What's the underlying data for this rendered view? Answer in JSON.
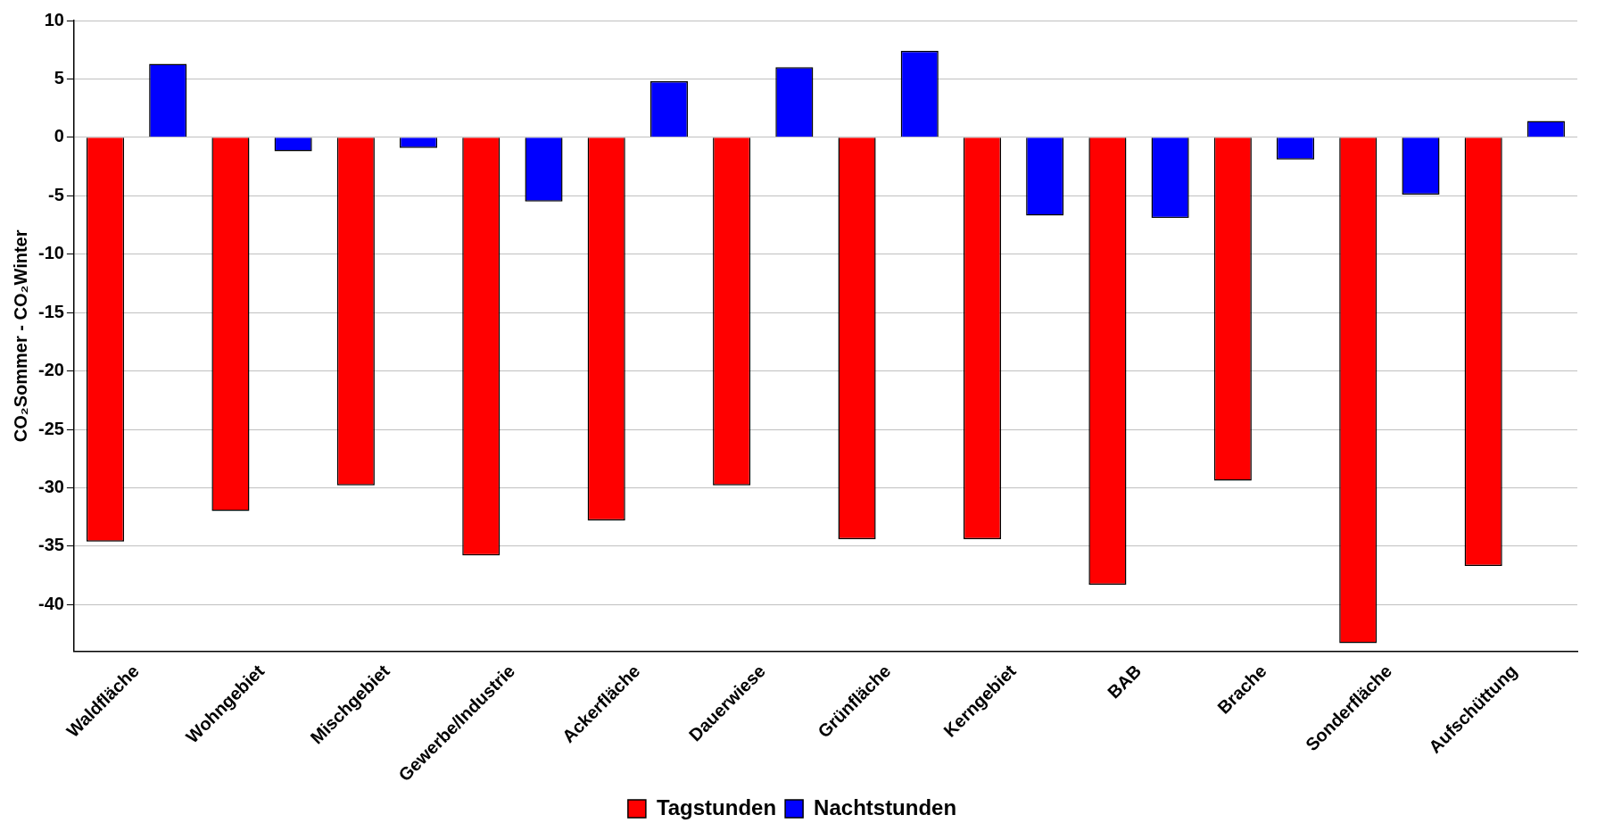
{
  "chart_data": {
    "type": "bar",
    "ylabel": "CO₂Sommer - CO₂Winter",
    "categories": [
      "Waldfläche",
      "Wohngebiet",
      "Mischgebiet",
      "Gewerbe/Industrie",
      "Ackerfläche",
      "Dauerwiese",
      "Grünfläche",
      "Kerngebiet",
      "BAB",
      "Brache",
      "Sonderfläche",
      "Aufschüttung"
    ],
    "series": [
      {
        "name": "Tagstunden",
        "color": "#ff0000",
        "values": [
          -34.6,
          -32.0,
          -29.8,
          -35.8,
          -32.8,
          -29.8,
          -34.4,
          -34.4,
          -38.3,
          -29.4,
          -43.3,
          -36.7
        ]
      },
      {
        "name": "Nachtstunden",
        "color": "#0000ff",
        "values": [
          6.3,
          -1.2,
          -0.9,
          -5.5,
          4.8,
          6.0,
          7.4,
          -6.7,
          -6.9,
          -1.9,
          -4.9,
          1.4
        ]
      }
    ],
    "ylim": [
      -44,
      10
    ],
    "yticks": [
      -40,
      -35,
      -30,
      -25,
      -20,
      -15,
      -10,
      -5,
      0,
      5,
      10
    ],
    "grid": "y",
    "legend": "bottom"
  }
}
